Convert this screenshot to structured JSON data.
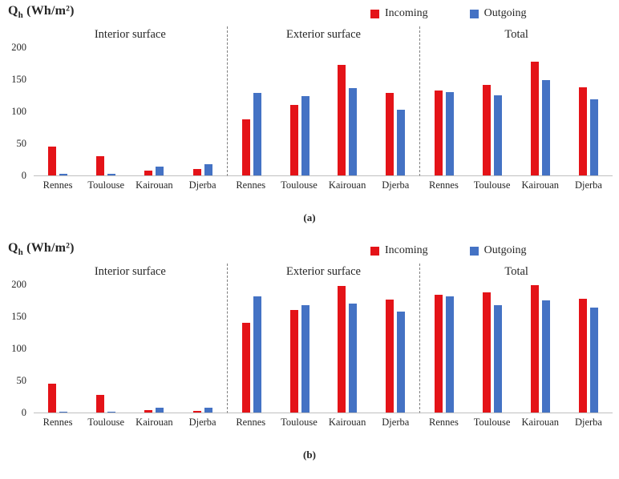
{
  "chart_data": [
    {
      "type": "bar",
      "panel_label": "(a)",
      "y_title": {
        "base": "Q",
        "sub": "h",
        "unit": " (Wh/m²)"
      },
      "groups": [
        "Interior surface",
        "Exterior surface",
        "Total"
      ],
      "categories": [
        "Rennes",
        "Toulouse",
        "Kairouan",
        "Djerba"
      ],
      "ylim": [
        0,
        200
      ],
      "yticks": [
        0,
        50,
        100,
        150,
        200
      ],
      "grid": false,
      "legend_position": "top",
      "series": [
        {
          "name": "Incoming",
          "color": "#e41318",
          "values": [
            [
              45,
              30,
              8,
              10
            ],
            [
              88,
              110,
              172,
              129
            ],
            [
              133,
              141,
              178,
              138
            ]
          ]
        },
        {
          "name": "Outgoing",
          "color": "#4472c4",
          "values": [
            [
              2,
              2,
              14,
              17
            ],
            [
              129,
              124,
              136,
              103
            ],
            [
              130,
              125,
              149,
              119
            ]
          ]
        }
      ]
    },
    {
      "type": "bar",
      "panel_label": "(b)",
      "y_title": {
        "base": "Q",
        "sub": "h",
        "unit": " (Wh/m²)"
      },
      "groups": [
        "Interior surface",
        "Exterior surface",
        "Total"
      ],
      "categories": [
        "Rennes",
        "Toulouse",
        "Kairouan",
        "Djerba"
      ],
      "ylim": [
        0,
        200
      ],
      "yticks": [
        0,
        50,
        100,
        150,
        200
      ],
      "grid": false,
      "legend_position": "top",
      "series": [
        {
          "name": "Incoming",
          "color": "#e41318",
          "values": [
            [
              45,
              28,
              4,
              2
            ],
            [
              140,
              160,
              197,
              176
            ],
            [
              184,
              187,
              199,
              177
            ]
          ]
        },
        {
          "name": "Outgoing",
          "color": "#4472c4",
          "values": [
            [
              1,
              1,
              7,
              8
            ],
            [
              181,
              168,
              170,
              157
            ],
            [
              181,
              168,
              175,
              164
            ]
          ]
        }
      ]
    }
  ]
}
